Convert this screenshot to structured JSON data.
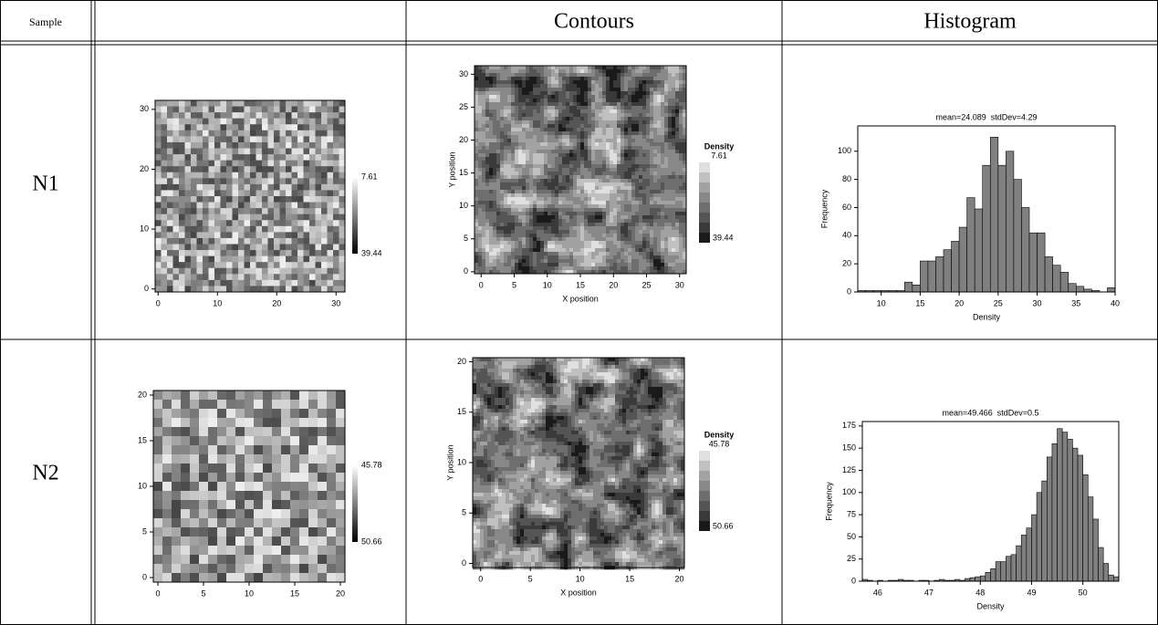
{
  "header": {
    "sample": "Sample",
    "contours": "Contours",
    "histogram": "Histogram"
  },
  "rows": [
    {
      "label": "N1",
      "heatmap": {
        "xlim": [
          -0.5,
          31.5
        ],
        "ylim": [
          -0.5,
          31.5
        ],
        "xticks": [
          0,
          10,
          20,
          30
        ],
        "yticks": [
          0,
          10,
          20,
          30
        ],
        "colorbar_labels": [
          7.61,
          39.44
        ]
      },
      "contour": {
        "xlabel": "X position",
        "ylabel": "Y position",
        "xlim": [
          -1,
          31
        ],
        "ylim": [
          -0.3,
          31.3
        ],
        "xticks": [
          0,
          5,
          10,
          15,
          20,
          25,
          30
        ],
        "yticks": [
          0,
          5,
          10,
          15,
          20,
          25,
          30
        ],
        "legend_title": "Density",
        "colorbar_labels": [
          7.61,
          39.44
        ]
      },
      "histogram": {
        "title": "mean=24.089  stdDev=4.29",
        "xlabel": "Density",
        "ylabel": "Frequency",
        "color": "#808080",
        "xlim": [
          7,
          40
        ],
        "ylim": [
          0,
          118
        ],
        "xticks": [
          10,
          15,
          20,
          25,
          30,
          35,
          40
        ],
        "yticks": [
          0,
          20,
          40,
          60,
          80,
          100
        ],
        "bins": [
          7,
          8,
          9,
          10,
          11,
          12,
          13,
          14,
          15,
          16,
          17,
          18,
          19,
          20,
          21,
          22,
          23,
          24,
          25,
          26,
          27,
          28,
          29,
          30,
          31,
          32,
          33,
          34,
          35,
          36,
          37,
          38,
          39,
          40
        ],
        "counts": [
          1,
          1,
          1,
          1,
          1,
          1,
          7,
          5,
          22,
          22,
          25,
          30,
          36,
          46,
          67,
          59,
          90,
          110,
          90,
          100,
          80,
          60,
          42,
          42,
          25,
          19,
          14,
          6,
          4,
          2,
          1,
          0,
          3
        ]
      }
    },
    {
      "label": "N2",
      "heatmap": {
        "xlim": [
          -0.5,
          20.5
        ],
        "ylim": [
          -0.5,
          20.5
        ],
        "xticks": [
          0,
          5,
          10,
          15,
          20
        ],
        "yticks": [
          0,
          5,
          10,
          15,
          20
        ],
        "colorbar_labels": [
          45.78,
          50.66
        ]
      },
      "contour": {
        "xlabel": "X position",
        "ylabel": "Y position",
        "xlim": [
          -0.8,
          20.5
        ],
        "ylim": [
          -0.4,
          20.4
        ],
        "xticks": [
          0,
          5,
          10,
          15,
          20
        ],
        "yticks": [
          0,
          5,
          10,
          15,
          20
        ],
        "legend_title": "Density",
        "colorbar_labels": [
          45.78,
          50.66
        ]
      },
      "histogram": {
        "title": "mean=49.466  stdDev=0.5",
        "xlabel": "Density",
        "ylabel": "Frequency",
        "color": "#808080",
        "xlim": [
          45.7,
          50.7
        ],
        "ylim": [
          0,
          180
        ],
        "xticks": [
          46,
          47,
          48,
          49,
          50
        ],
        "yticks": [
          0,
          25,
          50,
          75,
          100,
          125,
          150,
          175
        ],
        "bins": [
          45.7,
          45.8,
          45.9,
          46.0,
          46.1,
          46.2,
          46.3,
          46.4,
          46.5,
          46.6,
          46.7,
          46.8,
          46.9,
          47.0,
          47.1,
          47.2,
          47.3,
          47.4,
          47.5,
          47.6,
          47.7,
          47.8,
          47.9,
          48.0,
          48.1,
          48.2,
          48.3,
          48.4,
          48.5,
          48.6,
          48.7,
          48.8,
          48.9,
          49.0,
          49.1,
          49.2,
          49.3,
          49.4,
          49.5,
          49.6,
          49.7,
          49.8,
          49.9,
          50.0,
          50.1,
          50.2,
          50.3,
          50.4,
          50.5,
          50.6,
          50.7
        ],
        "counts": [
          2,
          1,
          0,
          1,
          0,
          1,
          1,
          2,
          1,
          1,
          0,
          1,
          1,
          0,
          1,
          2,
          1,
          1,
          2,
          1,
          3,
          4,
          5,
          6,
          10,
          14,
          22,
          22,
          28,
          30,
          40,
          52,
          60,
          75,
          100,
          113,
          140,
          155,
          172,
          168,
          160,
          150,
          142,
          120,
          95,
          70,
          38,
          20,
          7,
          5
        ]
      }
    }
  ]
}
